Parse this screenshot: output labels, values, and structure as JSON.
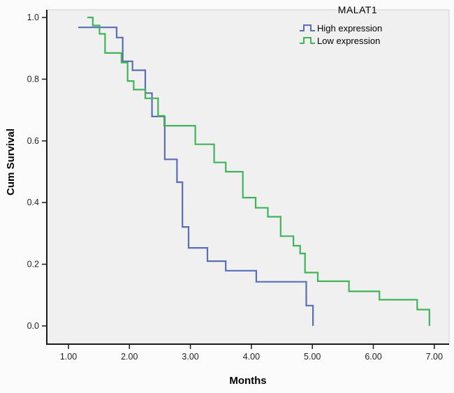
{
  "figure": {
    "background": "#fbfbfb",
    "plot_background": "#f0f0f1",
    "axis_color": "#1a1a1a",
    "frame_light_color": "#d9d9d9",
    "tick_label_color": "#1f1f1f"
  },
  "chart_data": {
    "type": "line",
    "subtype": "kaplan-meier-step",
    "title": "MALAT1",
    "xlabel": "Months",
    "ylabel": "Cum Survival",
    "grid": false,
    "xlim": [
      0.645,
      7.243
    ],
    "ylim": [
      -0.059,
      1.025
    ],
    "x_ticks": [
      1,
      2,
      3,
      4,
      5,
      6,
      7
    ],
    "x_tick_labels": [
      "1.00",
      "2.00",
      "3.00",
      "4.00",
      "5.00",
      "6.00",
      "7.00"
    ],
    "y_ticks": [
      0.0,
      0.2,
      0.4,
      0.6,
      0.8,
      1.0
    ],
    "y_tick_labels": [
      "0.0",
      "0.2",
      "0.4",
      "0.6",
      "0.8",
      "1.0"
    ],
    "legend": {
      "title": "MALAT1",
      "position": "top-right",
      "entries": [
        {
          "label": "High expression",
          "color": "#5a6eb5"
        },
        {
          "label": "Low expression",
          "color": "#3fb558"
        }
      ]
    },
    "series": [
      {
        "name": "High expression",
        "color": "#5a6eb5",
        "step": "post",
        "points": [
          [
            1.16,
            0.968
          ],
          [
            1.79,
            0.935
          ],
          [
            1.89,
            0.858
          ],
          [
            2.05,
            0.829
          ],
          [
            2.26,
            0.755
          ],
          [
            2.37,
            0.679
          ],
          [
            2.58,
            0.54
          ],
          [
            2.78,
            0.466
          ],
          [
            2.87,
            0.321
          ],
          [
            2.97,
            0.253
          ],
          [
            3.28,
            0.21
          ],
          [
            3.58,
            0.179
          ],
          [
            4.08,
            0.143
          ],
          [
            4.9,
            0.066
          ],
          [
            5.01,
            0.0
          ]
        ]
      },
      {
        "name": "Low expression",
        "color": "#3fb558",
        "step": "post",
        "points": [
          [
            1.31,
            1.0
          ],
          [
            1.4,
            0.974
          ],
          [
            1.51,
            0.947
          ],
          [
            1.6,
            0.885
          ],
          [
            1.87,
            0.854
          ],
          [
            1.97,
            0.794
          ],
          [
            2.07,
            0.766
          ],
          [
            2.26,
            0.738
          ],
          [
            2.47,
            0.681
          ],
          [
            2.57,
            0.649
          ],
          [
            3.08,
            0.589
          ],
          [
            3.39,
            0.53
          ],
          [
            3.58,
            0.5
          ],
          [
            3.86,
            0.416
          ],
          [
            4.07,
            0.383
          ],
          [
            4.27,
            0.354
          ],
          [
            4.48,
            0.291
          ],
          [
            4.69,
            0.26
          ],
          [
            4.8,
            0.235
          ],
          [
            4.88,
            0.173
          ],
          [
            5.09,
            0.145
          ],
          [
            5.6,
            0.112
          ],
          [
            6.1,
            0.085
          ],
          [
            6.72,
            0.053
          ],
          [
            6.92,
            0.0
          ]
        ]
      }
    ]
  }
}
